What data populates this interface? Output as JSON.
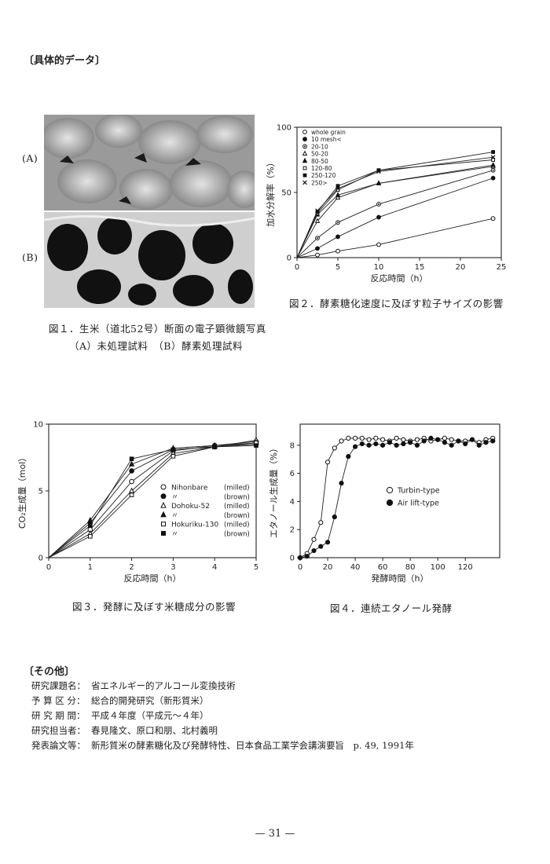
{
  "section1_heading": "〔具体的データ〕",
  "section2_heading": "〔その他〕",
  "fig1": {
    "label_a": "(A)",
    "label_b": "(B)",
    "caption1": "図１．生米（道北52号）断面の電子顕微鏡写真",
    "caption2": "（A）未処理試料　（B）酵素処理試料"
  },
  "fig2": {
    "caption": "図２．酵素糖化速度に及ぼす粒子サイズの影響"
  },
  "fig3": {
    "caption": "図３．発酵に及ぼす米糖成分の影響"
  },
  "fig4": {
    "caption": "図４．連続エタノール発酵"
  },
  "chart_data": [
    {
      "type": "line",
      "xlabel": "反応時間（h）",
      "ylabel": "加水分解率（%）",
      "xlim": [
        0,
        25
      ],
      "ylim": [
        0,
        100
      ],
      "xticks": [
        0,
        5,
        10,
        15,
        20,
        25
      ],
      "yticks": [
        0,
        50,
        100
      ],
      "x": [
        0,
        2.5,
        5,
        10,
        24
      ],
      "series": [
        {
          "name": "whole grain",
          "marker": "circle-open",
          "values": [
            0,
            2,
            5,
            10,
            30
          ]
        },
        {
          "name": "10 mesh<",
          "marker": "circle-filled",
          "values": [
            0,
            7,
            16,
            31,
            61
          ]
        },
        {
          "name": "20-10",
          "marker": "circle-dot",
          "values": [
            0,
            15,
            27,
            41,
            67
          ]
        },
        {
          "name": "50-20",
          "marker": "triangle-open",
          "values": [
            0,
            28,
            46,
            57,
            70
          ]
        },
        {
          "name": "80-50",
          "marker": "triangle-filled",
          "values": [
            0,
            33,
            48,
            57,
            71
          ]
        },
        {
          "name": "120-80",
          "marker": "square-open",
          "values": [
            0,
            34,
            52,
            67,
            75
          ]
        },
        {
          "name": "250-120",
          "marker": "square-filled",
          "values": [
            0,
            35,
            55,
            67,
            81
          ]
        },
        {
          "name": "250>",
          "marker": "cross",
          "values": [
            0,
            36,
            53,
            66,
            77
          ]
        }
      ]
    },
    {
      "type": "line",
      "xlabel": "反応時間（h）",
      "ylabel": "CO₂生成量（mol）",
      "xlim": [
        0,
        5
      ],
      "ylim": [
        0,
        10
      ],
      "xticks": [
        0,
        1,
        2,
        3,
        4,
        5
      ],
      "yticks": [
        0,
        5,
        10
      ],
      "x": [
        0,
        1,
        2,
        3,
        4,
        5
      ],
      "series": [
        {
          "name": "Nihonbare",
          "type_note": "(milled)",
          "marker": "circle-open",
          "values": [
            0,
            2.1,
            5.7,
            8.0,
            8.4,
            8.7
          ]
        },
        {
          "name": "〃",
          "type_note": "(brown)",
          "marker": "circle-filled",
          "values": [
            0,
            2.6,
            6.5,
            8.1,
            8.3,
            8.5
          ]
        },
        {
          "name": "Dohoku-52",
          "type_note": "(milled)",
          "marker": "triangle-open",
          "values": [
            0,
            1.8,
            5.0,
            7.8,
            8.3,
            8.8
          ]
        },
        {
          "name": "〃",
          "type_note": "(brown)",
          "marker": "triangle-filled",
          "values": [
            0,
            2.8,
            7.0,
            8.2,
            8.4,
            8.6
          ]
        },
        {
          "name": "Hokuriku-130",
          "type_note": "(milled)",
          "marker": "square-open",
          "values": [
            0,
            1.6,
            4.7,
            7.6,
            8.3,
            8.6
          ]
        },
        {
          "name": "〃",
          "type_note": "(brown)",
          "marker": "square-filled",
          "values": [
            0,
            2.4,
            7.4,
            8.1,
            8.3,
            8.4
          ]
        }
      ]
    },
    {
      "type": "line",
      "xlabel": "発酵時間（h）",
      "ylabel": "エタノール生成量（%）",
      "xlim": [
        0,
        145
      ],
      "ylim": [
        0,
        9.5
      ],
      "xticks": [
        0,
        20,
        40,
        60,
        80,
        100,
        120
      ],
      "yticks": [
        0,
        2,
        4,
        6,
        8
      ],
      "series": [
        {
          "name": "Turbin-type",
          "marker": "circle-open",
          "x": [
            0,
            5,
            10,
            15,
            20,
            25,
            30,
            35,
            40,
            45,
            50,
            55,
            60,
            65,
            70,
            75,
            80,
            85,
            90,
            95,
            100,
            105,
            110,
            115,
            120,
            125,
            130,
            135,
            140
          ],
          "values": [
            0,
            0.3,
            1.3,
            2.5,
            6.8,
            7.8,
            8.3,
            8.5,
            8.5,
            8.5,
            8.4,
            8.5,
            8.4,
            8.3,
            8.5,
            8.4,
            8.3,
            8.4,
            8.5,
            8.3,
            8.4,
            8.5,
            8.4,
            8.3,
            8.3,
            8.4,
            8.2,
            8.4,
            8.5
          ]
        },
        {
          "name": "Air lift-type",
          "marker": "circle-filled",
          "x": [
            0,
            5,
            10,
            15,
            20,
            25,
            30,
            35,
            40,
            45,
            50,
            55,
            60,
            65,
            70,
            75,
            80,
            85,
            90,
            95,
            100,
            105,
            110,
            115,
            120,
            125,
            130,
            135,
            140
          ],
          "values": [
            0,
            0.1,
            0.5,
            0.8,
            1.1,
            2.9,
            5.3,
            7.2,
            7.9,
            8.1,
            8.0,
            8.1,
            8.0,
            8.2,
            8.0,
            8.1,
            8.2,
            8.0,
            8.3,
            8.5,
            8.4,
            8.2,
            8.0,
            8.3,
            8.1,
            8.4,
            8.0,
            8.2,
            8.3
          ]
        }
      ]
    }
  ],
  "meta": {
    "rows": [
      {
        "key": "研究課題名：",
        "value": "省エネルギー的アルコール変換技術"
      },
      {
        "key": "予 算 区 分：",
        "value": "総合的開発研究（新形質米）"
      },
      {
        "key": "研 究 期 間：",
        "value": "平成４年度（平成元～４年）"
      },
      {
        "key": "研究担当者：",
        "value": "春見隆文、原口和朋、北村義明"
      },
      {
        "key": "発表論文等：",
        "value": "新形質米の酵素糖化及び発酵特性、日本食品工業学会講演要旨　p. 49, 1991年"
      }
    ]
  },
  "page_number": "— 31 —"
}
